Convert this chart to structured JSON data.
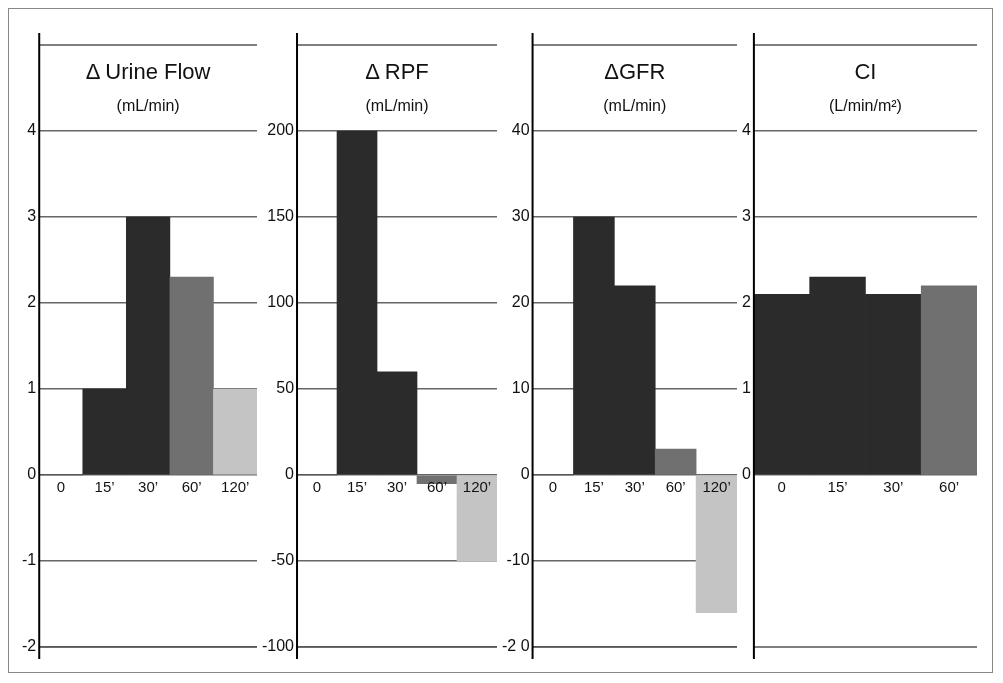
{
  "chart_data": [
    {
      "type": "bar",
      "title": "Δ Urine Flow",
      "subtitle": "(mL/min)",
      "categories": [
        "0",
        "15’",
        "30’",
        "60’",
        "120’"
      ],
      "values": [
        0,
        1,
        3,
        2.3,
        1
      ],
      "colors": [
        "#2b2b2b",
        "#2b2b2b",
        "#2b2b2b",
        "#707070",
        "#c4c4c4"
      ],
      "ylim": [
        -2,
        5
      ],
      "yticks": [
        -2,
        -1,
        0,
        1,
        2,
        3,
        4
      ],
      "grid": "y",
      "legend": false
    },
    {
      "type": "bar",
      "title": "Δ RPF",
      "subtitle": "(mL/min)",
      "categories": [
        "0",
        "15’",
        "30’",
        "60’",
        "120’"
      ],
      "values": [
        0,
        200,
        60,
        -5,
        -50
      ],
      "colors": [
        "#2b2b2b",
        "#2b2b2b",
        "#2b2b2b",
        "#707070",
        "#c4c4c4"
      ],
      "ylim": [
        -100,
        250
      ],
      "yticks": [
        -100,
        -50,
        0,
        50,
        100,
        150,
        200
      ],
      "grid": "y",
      "legend": false
    },
    {
      "type": "bar",
      "title": "ΔGFR",
      "subtitle": "(mL/min)",
      "categories": [
        "0",
        "15’",
        "30’",
        "60’",
        "120’"
      ],
      "values": [
        0,
        30,
        22,
        3,
        -16
      ],
      "colors": [
        "#2b2b2b",
        "#2b2b2b",
        "#2b2b2b",
        "#707070",
        "#c4c4c4"
      ],
      "ylim": [
        -20,
        50
      ],
      "yticks": [
        {
          "value": -20,
          "label": "-2 0"
        },
        -10,
        0,
        10,
        20,
        30,
        40
      ],
      "grid": "y",
      "legend": false
    },
    {
      "type": "bar",
      "title": "CI",
      "subtitle": "(L/min/m²)",
      "categories": [
        "0",
        "15’",
        "30’",
        "60’"
      ],
      "values": [
        2.1,
        2.3,
        2.1,
        2.2
      ],
      "colors": [
        "#2b2b2b",
        "#2b2b2b",
        "#2b2b2b",
        "#707070"
      ],
      "ylim": [
        -2,
        5
      ],
      "yticks": [
        0,
        1,
        2,
        3,
        4
      ],
      "grid": "y",
      "legend": false
    }
  ]
}
